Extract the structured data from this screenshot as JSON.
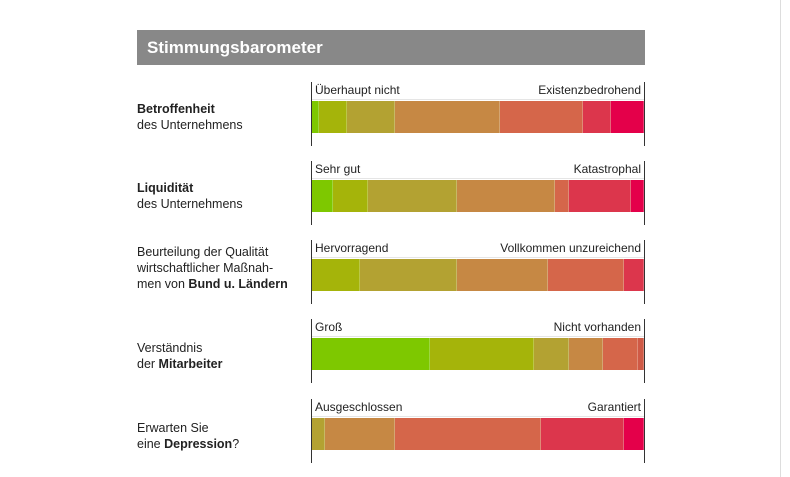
{
  "chart_data": {
    "type": "bar",
    "orientation": "horizontal-stacked",
    "title": "Stimmungsbarometer",
    "unit": "%",
    "grid": false,
    "legend": "none",
    "rows": [
      {
        "question_bold_first": "Betroffenheit",
        "question_rest": "des Unternehmens",
        "low": "Überhaupt nicht",
        "high": "Existenzbedrohend",
        "values": [
          2,
          8.5,
          14.5,
          31.5,
          25,
          8.5,
          10
        ],
        "colors": [
          "#7ec800",
          "#a5b40a",
          "#b3a232",
          "#c68844",
          "#d5664a",
          "#dc364c",
          "#e4004a"
        ]
      },
      {
        "question_bold_first": "Liquidität",
        "question_rest": "des Unternehmens",
        "low": "Sehr gut",
        "high": "Katastrophal",
        "values": [
          6.2,
          10.6,
          27,
          29.4,
          4.1,
          18.9,
          3.8
        ],
        "colors": [
          "#7ec800",
          "#a5b40a",
          "#b3a232",
          "#c68844",
          "#d5664a",
          "#dc364c",
          "#e4004a"
        ]
      },
      {
        "line1": "Beurteilung der Qualität",
        "line2": "wirtschaftlicher Maßnah-",
        "line3_plain": "men von ",
        "line3_bold": "Bund u. Ländern",
        "low": "Hervorragend",
        "high": "Vollkommen unzureichend",
        "values": [
          14.6,
          29.2,
          27.2,
          23,
          6
        ],
        "colors": [
          "#a5b40a",
          "#b3a232",
          "#c68844",
          "#d5664a",
          "#dc364c"
        ]
      },
      {
        "line1": "Verständnis",
        "line2_plain": "der ",
        "line2_bold": "Mitarbeiter",
        "low": "Groß",
        "high": "Nicht vorhanden",
        "values": [
          35.4,
          31.6,
          10.3,
          10.4,
          10.5,
          1.8
        ],
        "colors": [
          "#7ec800",
          "#a5b40a",
          "#b3a232",
          "#c68844",
          "#d5664a",
          "#cf5a46"
        ]
      },
      {
        "line1": "Erwarten Sie",
        "line2_plain": "eine ",
        "line2_bold": "Depression",
        "line2_end": "?",
        "low": "Ausgeschlossen",
        "high": "Garantiert",
        "values": [
          4,
          20.9,
          44.1,
          25,
          6
        ],
        "colors": [
          "#b3a232",
          "#c68844",
          "#d5664a",
          "#dc364c",
          "#e4004a"
        ]
      }
    ]
  }
}
